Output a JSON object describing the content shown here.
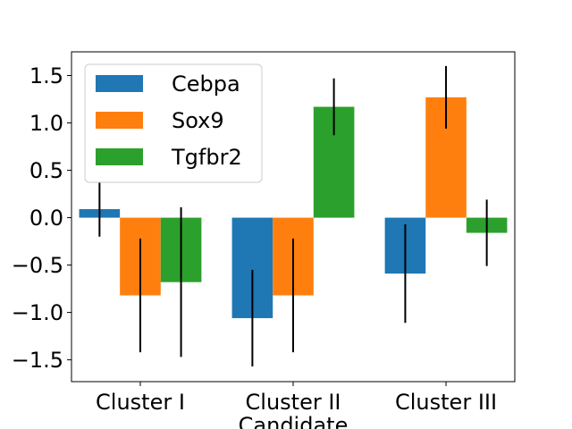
{
  "chart_data": {
    "type": "bar",
    "categories": [
      "Cluster I",
      "Cluster II",
      "Cluster III"
    ],
    "xlabel": "Candidate",
    "ylabel": "",
    "ylim": [
      -1.73,
      1.75
    ],
    "yticks": [
      "−1.5",
      "−1.0",
      "−0.5",
      "0.0",
      "0.5",
      "1.0",
      "1.5"
    ],
    "ytick_values": [
      -1.5,
      -1.0,
      -0.5,
      0.0,
      0.5,
      1.0,
      1.5
    ],
    "legend_position": "top-left",
    "grid": false,
    "series": [
      {
        "name": "Cebpa",
        "color": "#1f77b4",
        "values": [
          0.09,
          -1.06,
          -0.59
        ],
        "errors": [
          0.29,
          0.51,
          0.52
        ]
      },
      {
        "name": "Sox9",
        "color": "#ff7f0e",
        "values": [
          -0.82,
          -0.82,
          1.27
        ],
        "errors": [
          0.6,
          0.6,
          0.33
        ]
      },
      {
        "name": "Tgfbr2",
        "color": "#2ca02c",
        "values": [
          -0.68,
          1.17,
          -0.16
        ],
        "errors": [
          0.79,
          0.3,
          0.35
        ]
      }
    ]
  }
}
